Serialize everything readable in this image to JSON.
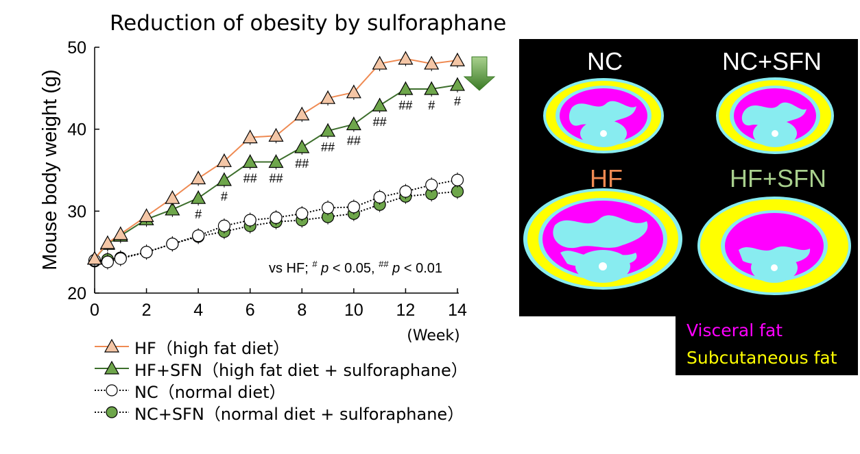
{
  "colors": {
    "hf_fill": "#f4c6a6",
    "hf_line": "#ef8a52",
    "hfsfn_fill": "#6ea64b",
    "hfsfn_line": "#3c6e2b",
    "visceral": "#ff00ff",
    "subcutaneous": "#ffff00",
    "tissue": "#88ecf0",
    "down_arrow": "#4c8a2e"
  },
  "chart_data": {
    "type": "line",
    "title": "Reduction of obesity by sulforaphane",
    "xlabel": "(Week)",
    "ylabel": "Mouse body weight (g)",
    "xlim": [
      0,
      14
    ],
    "ylim": [
      20,
      50
    ],
    "x_ticks": [
      "0",
      "2",
      "4",
      "6",
      "8",
      "10",
      "12",
      "14"
    ],
    "y_ticks": [
      "20",
      "30",
      "40",
      "50"
    ],
    "stat_note": {
      "prefix": "vs HF; ",
      "s1": "#",
      "p1": "p",
      "t1": " < 0.05, ",
      "s2": "##",
      "p2": "p",
      "t2": " < 0.01"
    },
    "series": [
      {
        "name": "HF（high fat diet）",
        "marker": "triangle",
        "fill": "#f4c6a6",
        "line": "#ef8a52",
        "style": "solid",
        "x": [
          0,
          0.5,
          1,
          2,
          3,
          4,
          5,
          6,
          7,
          8,
          9,
          10,
          11,
          12,
          13,
          14
        ],
        "y": [
          24.2,
          26.1,
          27.2,
          29.4,
          31.6,
          34.0,
          36.1,
          39.0,
          39.2,
          41.8,
          43.8,
          44.5,
          48.0,
          48.6,
          48.0,
          48.4
        ]
      },
      {
        "name": "HF+SFN（high fat diet + sulforaphane）",
        "marker": "triangle",
        "fill": "#6ea64b",
        "line": "#3c6e2b",
        "style": "solid",
        "x": [
          0,
          0.5,
          1,
          2,
          3,
          4,
          5,
          6,
          7,
          8,
          9,
          10,
          11,
          12,
          13,
          14
        ],
        "y": [
          24.2,
          26.0,
          27.0,
          29.0,
          30.2,
          31.6,
          33.8,
          36.0,
          36.0,
          37.8,
          39.8,
          40.6,
          42.9,
          44.9,
          44.9,
          45.4
        ],
        "significance": [
          "",
          "",
          "",
          "",
          "",
          "#",
          "#",
          "##",
          "##",
          "##",
          "##",
          "##",
          "##",
          "##",
          "#",
          "#"
        ]
      },
      {
        "name": "NC（normal diet）",
        "marker": "circle",
        "fill": "#ffffff",
        "line": "#000000",
        "style": "dotted",
        "x": [
          0,
          0.5,
          1,
          2,
          3,
          4,
          5,
          6,
          7,
          8,
          9,
          10,
          11,
          12,
          13,
          14
        ],
        "y": [
          24.0,
          23.8,
          24.2,
          25.0,
          26.0,
          27.0,
          28.2,
          28.9,
          29.2,
          29.7,
          30.4,
          30.5,
          31.7,
          32.4,
          33.2,
          33.8
        ]
      },
      {
        "name": "NC+SFN（normal diet + sulforaphane）",
        "marker": "circle",
        "fill": "#6ea64b",
        "line": "#000000",
        "style": "dotted",
        "x": [
          0,
          0.5,
          1,
          2,
          3,
          4,
          5,
          6,
          7,
          8,
          9,
          10,
          11,
          12,
          13,
          14
        ],
        "y": [
          23.9,
          24.1,
          24.3,
          25.0,
          26.0,
          26.9,
          27.5,
          28.2,
          28.7,
          28.9,
          29.3,
          29.7,
          30.8,
          31.8,
          32.1,
          32.4
        ]
      }
    ]
  },
  "ct_panel": {
    "labels": [
      {
        "text": "NC",
        "color": "#ffffff"
      },
      {
        "text": "NC+SFN",
        "color": "#ffffff"
      },
      {
        "text": "HF",
        "color": "#ef8a52"
      },
      {
        "text": "HF+SFN",
        "color": "#a8d08d"
      }
    ],
    "key": [
      {
        "text": "Visceral fat",
        "color": "#ff00ff"
      },
      {
        "text": "Subcutaneous  fat",
        "color": "#ffff00"
      }
    ]
  }
}
